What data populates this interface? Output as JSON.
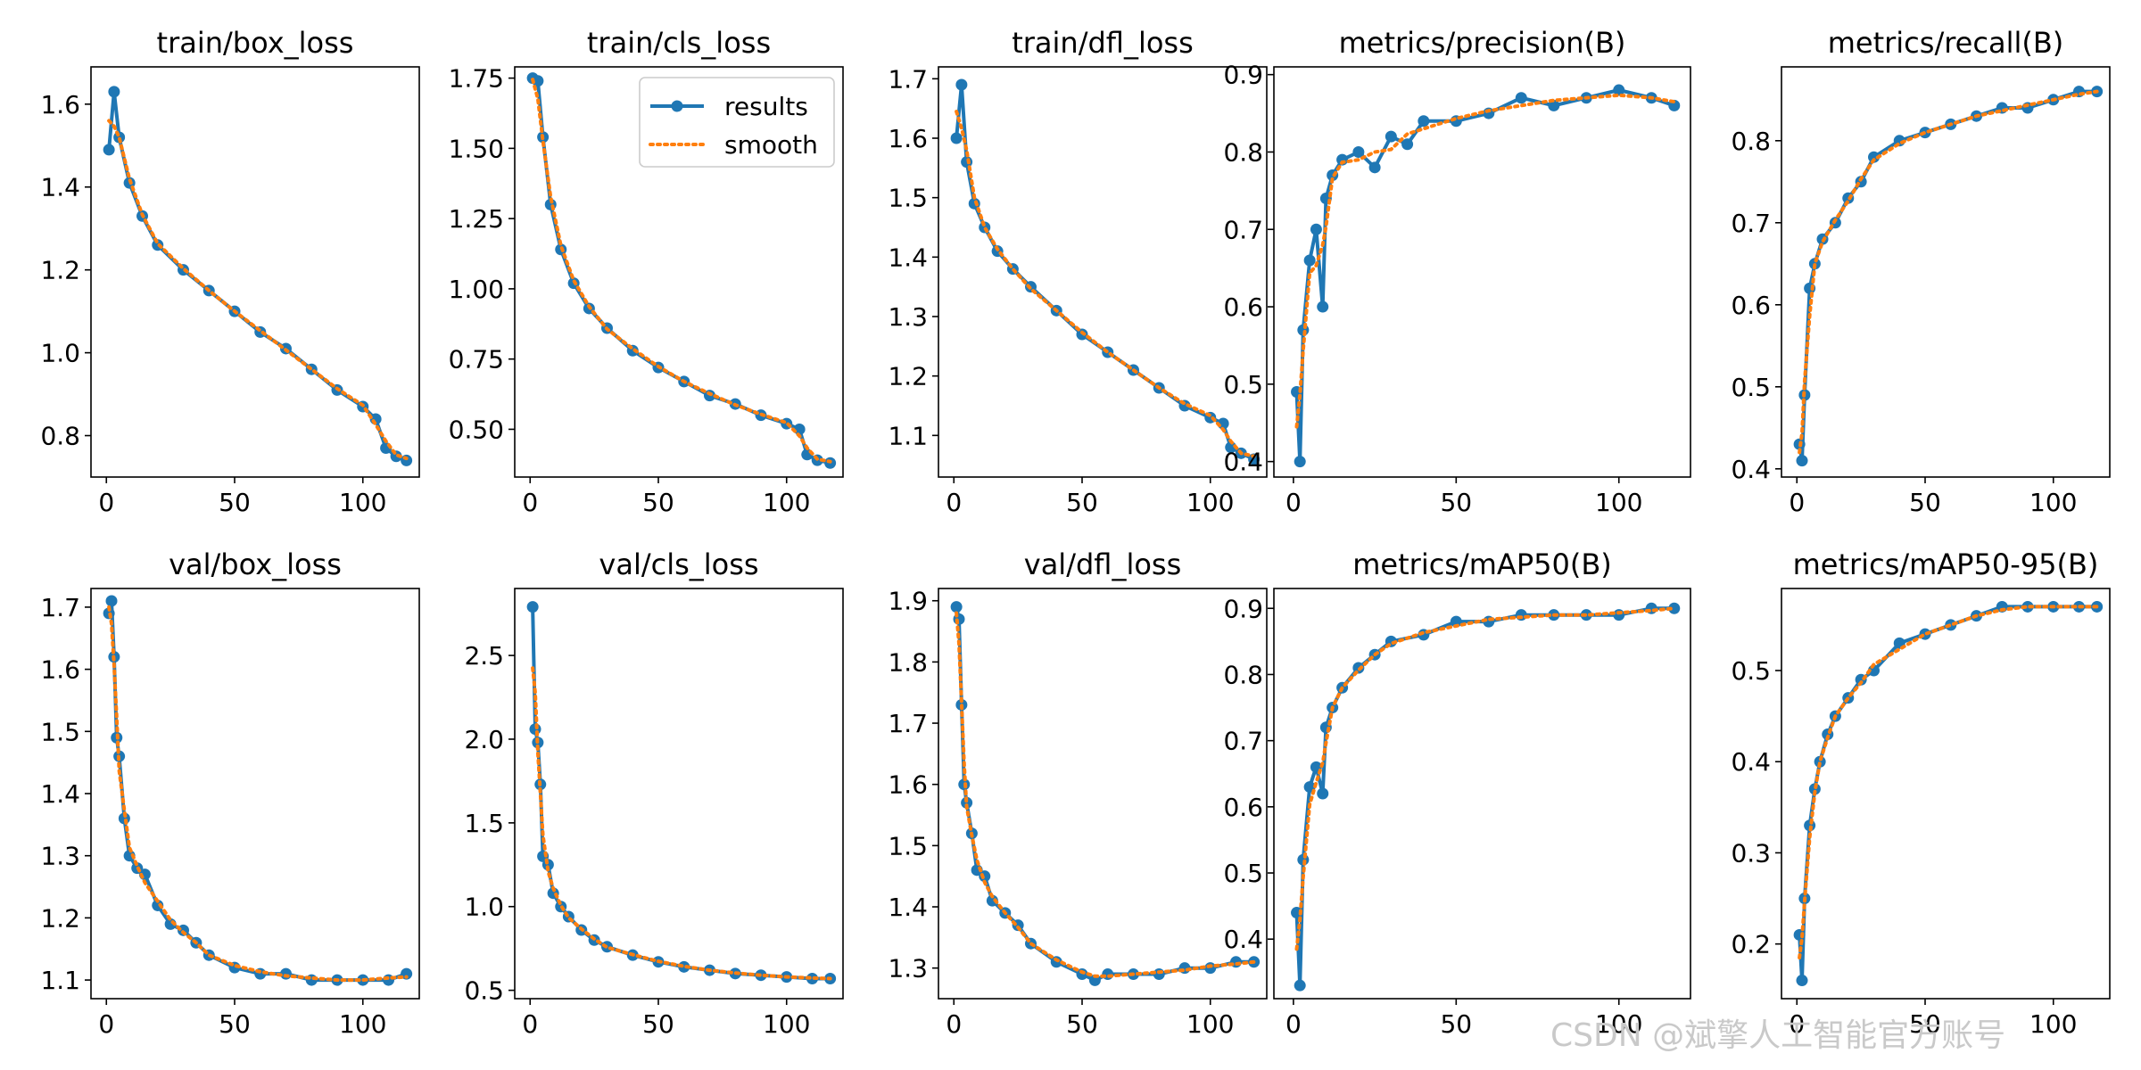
{
  "figure": {
    "watermark": "CSDN @斌擎人工智能官方账号"
  },
  "legend": {
    "results_label": "results",
    "smooth_label": "smooth",
    "placement": "upper-right of train/cls_loss panel"
  },
  "colors": {
    "results": "#1f77b4",
    "smooth": "#ff7f0e",
    "axes": "#000000",
    "background": "#ffffff"
  },
  "chart_data": [
    {
      "type": "line",
      "title": "train/box_loss",
      "xlim": [
        -6,
        122
      ],
      "ylim": [
        0.7,
        1.69
      ],
      "xticks": [
        0,
        50,
        100
      ],
      "yticks": [
        0.8,
        1.0,
        1.2,
        1.4,
        1.6
      ],
      "decimals": 1,
      "grid": false,
      "x": [
        1,
        3,
        5,
        9,
        14,
        20,
        30,
        40,
        50,
        60,
        70,
        80,
        90,
        100,
        105,
        109,
        113,
        117
      ],
      "values": [
        1.49,
        1.63,
        1.52,
        1.41,
        1.33,
        1.26,
        1.2,
        1.15,
        1.1,
        1.05,
        1.01,
        0.96,
        0.91,
        0.87,
        0.84,
        0.77,
        0.75,
        0.74
      ]
    },
    {
      "type": "line",
      "title": "train/cls_loss",
      "xlim": [
        -6,
        122
      ],
      "ylim": [
        0.33,
        1.79
      ],
      "xticks": [
        0,
        50,
        100
      ],
      "yticks": [
        0.5,
        0.75,
        1.0,
        1.25,
        1.5,
        1.75
      ],
      "decimals": 2,
      "grid": false,
      "legend": true,
      "x": [
        1,
        3,
        5,
        8,
        12,
        17,
        23,
        30,
        40,
        50,
        60,
        70,
        80,
        90,
        100,
        105,
        108,
        112,
        117
      ],
      "values": [
        1.75,
        1.74,
        1.54,
        1.3,
        1.14,
        1.02,
        0.93,
        0.86,
        0.78,
        0.72,
        0.67,
        0.62,
        0.59,
        0.55,
        0.52,
        0.5,
        0.41,
        0.39,
        0.38
      ]
    },
    {
      "type": "line",
      "title": "train/dfl_loss",
      "xlim": [
        -6,
        122
      ],
      "ylim": [
        1.03,
        1.72
      ],
      "xticks": [
        0,
        50,
        100
      ],
      "yticks": [
        1.1,
        1.2,
        1.3,
        1.4,
        1.5,
        1.6,
        1.7
      ],
      "decimals": 1,
      "grid": false,
      "x": [
        1,
        3,
        5,
        8,
        12,
        17,
        23,
        30,
        40,
        50,
        60,
        70,
        80,
        90,
        100,
        105,
        108,
        112,
        117
      ],
      "values": [
        1.6,
        1.69,
        1.56,
        1.49,
        1.45,
        1.41,
        1.38,
        1.35,
        1.31,
        1.27,
        1.24,
        1.21,
        1.18,
        1.15,
        1.13,
        1.12,
        1.08,
        1.07,
        1.06
      ]
    },
    {
      "type": "line",
      "title": "metrics/precision(B)",
      "xlim": [
        -6,
        122
      ],
      "ylim": [
        0.38,
        0.91
      ],
      "xticks": [
        0,
        50,
        100
      ],
      "yticks": [
        0.4,
        0.5,
        0.6,
        0.7,
        0.8,
        0.9
      ],
      "decimals": 1,
      "grid": false,
      "x": [
        1,
        2,
        3,
        5,
        7,
        9,
        10,
        12,
        15,
        20,
        25,
        30,
        35,
        40,
        50,
        60,
        70,
        80,
        90,
        100,
        110,
        117
      ],
      "values": [
        0.49,
        0.4,
        0.57,
        0.66,
        0.7,
        0.6,
        0.74,
        0.77,
        0.79,
        0.8,
        0.78,
        0.82,
        0.81,
        0.84,
        0.84,
        0.85,
        0.87,
        0.86,
        0.87,
        0.88,
        0.87,
        0.86
      ]
    },
    {
      "type": "line",
      "title": "metrics/recall(B)",
      "xlim": [
        -6,
        122
      ],
      "ylim": [
        0.39,
        0.89
      ],
      "xticks": [
        0,
        50,
        100
      ],
      "yticks": [
        0.4,
        0.5,
        0.6,
        0.7,
        0.8
      ],
      "decimals": 1,
      "grid": false,
      "x": [
        1,
        2,
        3,
        5,
        7,
        10,
        15,
        20,
        25,
        30,
        40,
        50,
        60,
        70,
        80,
        90,
        100,
        110,
        117
      ],
      "values": [
        0.43,
        0.41,
        0.49,
        0.62,
        0.65,
        0.68,
        0.7,
        0.73,
        0.75,
        0.78,
        0.8,
        0.81,
        0.82,
        0.83,
        0.84,
        0.84,
        0.85,
        0.86,
        0.86
      ]
    },
    {
      "type": "line",
      "title": "val/box_loss",
      "xlim": [
        -6,
        122
      ],
      "ylim": [
        1.07,
        1.73
      ],
      "xticks": [
        0,
        50,
        100
      ],
      "yticks": [
        1.1,
        1.2,
        1.3,
        1.4,
        1.5,
        1.6,
        1.7
      ],
      "decimals": 1,
      "grid": false,
      "x": [
        1,
        2,
        3,
        4,
        5,
        7,
        9,
        12,
        15,
        20,
        25,
        30,
        35,
        40,
        50,
        60,
        70,
        80,
        90,
        100,
        110,
        117
      ],
      "values": [
        1.69,
        1.71,
        1.62,
        1.49,
        1.46,
        1.36,
        1.3,
        1.28,
        1.27,
        1.22,
        1.19,
        1.18,
        1.16,
        1.14,
        1.12,
        1.11,
        1.11,
        1.1,
        1.1,
        1.1,
        1.1,
        1.11
      ]
    },
    {
      "type": "line",
      "title": "val/cls_loss",
      "xlim": [
        -6,
        122
      ],
      "ylim": [
        0.45,
        2.9
      ],
      "xticks": [
        0,
        50,
        100
      ],
      "yticks": [
        0.5,
        1.0,
        1.5,
        2.0,
        2.5
      ],
      "decimals": 1,
      "grid": false,
      "x": [
        1,
        2,
        3,
        4,
        5,
        7,
        9,
        12,
        15,
        20,
        25,
        30,
        40,
        50,
        60,
        70,
        80,
        90,
        100,
        110,
        117
      ],
      "values": [
        2.79,
        2.06,
        1.98,
        1.73,
        1.3,
        1.25,
        1.08,
        1.0,
        0.94,
        0.86,
        0.8,
        0.76,
        0.71,
        0.67,
        0.64,
        0.62,
        0.6,
        0.59,
        0.58,
        0.57,
        0.57
      ]
    },
    {
      "type": "line",
      "title": "val/dfl_loss",
      "xlim": [
        -6,
        122
      ],
      "ylim": [
        1.25,
        1.92
      ],
      "xticks": [
        0,
        50,
        100
      ],
      "yticks": [
        1.3,
        1.4,
        1.5,
        1.6,
        1.7,
        1.8,
        1.9
      ],
      "decimals": 1,
      "grid": false,
      "x": [
        1,
        2,
        3,
        4,
        5,
        7,
        9,
        12,
        15,
        20,
        25,
        30,
        40,
        50,
        55,
        60,
        70,
        80,
        90,
        100,
        110,
        117
      ],
      "values": [
        1.89,
        1.87,
        1.73,
        1.6,
        1.57,
        1.52,
        1.46,
        1.45,
        1.41,
        1.39,
        1.37,
        1.34,
        1.31,
        1.29,
        1.28,
        1.29,
        1.29,
        1.29,
        1.3,
        1.3,
        1.31,
        1.31
      ]
    },
    {
      "type": "line",
      "title": "metrics/mAP50(B)",
      "xlim": [
        -6,
        122
      ],
      "ylim": [
        0.31,
        0.93
      ],
      "xticks": [
        0,
        50,
        100
      ],
      "yticks": [
        0.4,
        0.5,
        0.6,
        0.7,
        0.8,
        0.9
      ],
      "decimals": 1,
      "grid": false,
      "x": [
        1,
        2,
        3,
        5,
        7,
        9,
        10,
        12,
        15,
        20,
        25,
        30,
        40,
        50,
        60,
        70,
        80,
        90,
        100,
        110,
        117
      ],
      "values": [
        0.44,
        0.33,
        0.52,
        0.63,
        0.66,
        0.62,
        0.72,
        0.75,
        0.78,
        0.81,
        0.83,
        0.85,
        0.86,
        0.88,
        0.88,
        0.89,
        0.89,
        0.89,
        0.89,
        0.9,
        0.9
      ]
    },
    {
      "type": "line",
      "title": "metrics/mAP50-95(B)",
      "xlim": [
        -6,
        122
      ],
      "ylim": [
        0.14,
        0.59
      ],
      "xticks": [
        0,
        50,
        100
      ],
      "yticks": [
        0.2,
        0.3,
        0.4,
        0.5
      ],
      "decimals": 1,
      "grid": false,
      "x": [
        1,
        2,
        3,
        5,
        7,
        9,
        12,
        15,
        20,
        25,
        30,
        40,
        50,
        60,
        70,
        80,
        90,
        100,
        110,
        117
      ],
      "values": [
        0.21,
        0.16,
        0.25,
        0.33,
        0.37,
        0.4,
        0.43,
        0.45,
        0.47,
        0.49,
        0.5,
        0.53,
        0.54,
        0.55,
        0.56,
        0.57,
        0.57,
        0.57,
        0.57,
        0.57
      ]
    }
  ]
}
